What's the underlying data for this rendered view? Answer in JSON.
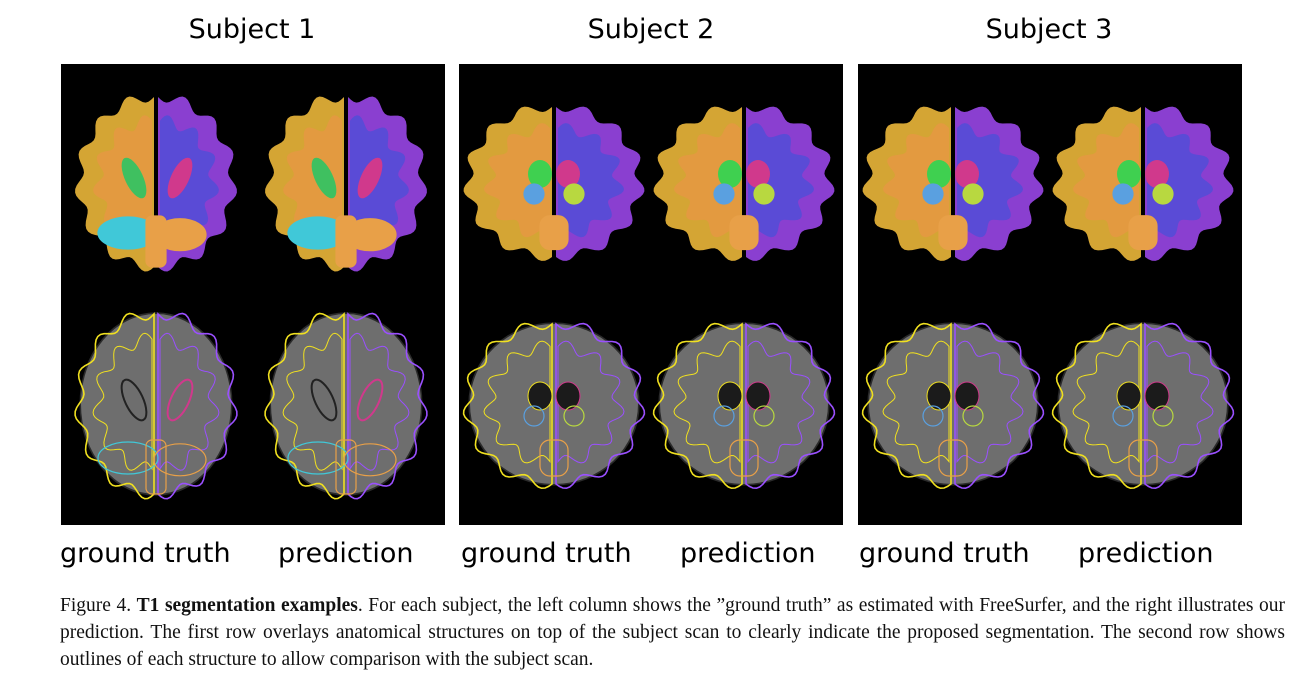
{
  "subjects": [
    {
      "title": "Subject 1",
      "left_label": "ground truth",
      "right_label": "prediction"
    },
    {
      "title": "Subject 2",
      "left_label": "ground truth",
      "right_label": "prediction"
    },
    {
      "title": "Subject 3",
      "left_label": "ground truth",
      "right_label": "prediction"
    }
  ],
  "caption": {
    "figure_label": "Figure 4.",
    "bold_title": "T1 segmentation examples",
    "text": ". For each subject, the left column shows the ”ground truth” as estimated with FreeSurfer, and the right illustrates our prediction. The first row overlays anatomical structures on top of the subject scan to clearly indicate the proposed segmentation. The second row shows outlines of each structure to allow comparison with the subject scan."
  },
  "colors": {
    "left_hemisphere": "#d4a534",
    "left_white_matter": "#e39a40",
    "right_hemisphere": "#8a3fd0",
    "right_white_matter": "#5a4bd6",
    "ventricle_green": "#3fc060",
    "ventricle_magenta": "#d0398c",
    "thalamus_green": "#3fd050",
    "caudate_blue": "#5aa0e0",
    "cerebellum_cyan": "#40c8d8",
    "brainstem": "#e8a048",
    "outline_yellow": "#f0e020",
    "outline_purple": "#9a50ff",
    "scan_gray": "#6e6e6e"
  }
}
